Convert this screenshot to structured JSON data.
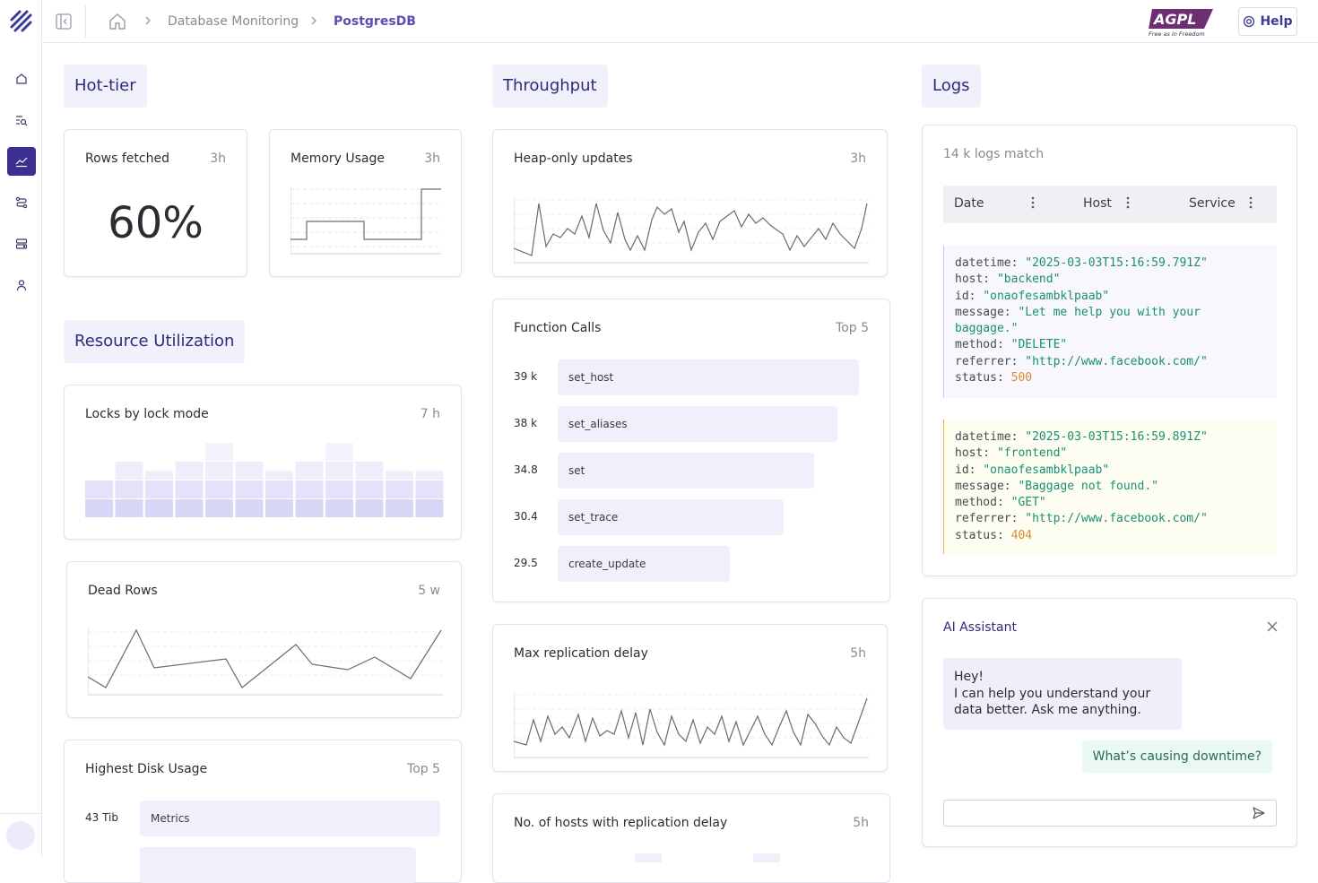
{
  "breadcrumb": {
    "items": [
      "Database Monitoring",
      "PostgresDB"
    ]
  },
  "header": {
    "help_label": "Help",
    "badge_text": "AGPL",
    "badge_tagline": "Free as in Freedom"
  },
  "sidebar": {
    "icons": [
      "home-icon",
      "search-list-icon",
      "chart-icon",
      "flow-icon",
      "database-icon",
      "user-icon"
    ],
    "active": "chart-icon"
  },
  "sections": {
    "hot_tier": "Hot-tier",
    "resource": "Resource Utilization",
    "throughput": "Throughput",
    "logs": "Logs"
  },
  "rows_fetched": {
    "title": "Rows fetched",
    "meta": "3h",
    "value": "60%"
  },
  "memory_usage": {
    "title": "Memory Usage",
    "meta": "3h"
  },
  "locks": {
    "title": "Locks by lock mode",
    "meta": "7 h",
    "bar_levels": [
      2,
      3,
      2.5,
      3,
      4,
      3,
      2.5,
      3,
      4,
      3,
      2.5,
      2.5
    ]
  },
  "dead_rows": {
    "title": "Dead Rows",
    "meta": "5 w"
  },
  "disk_usage": {
    "title": "Highest Disk Usage",
    "meta": "Top 5",
    "rows": [
      {
        "value": "43 Tib",
        "label": "Metrics",
        "fraction": 1.0
      },
      {
        "value": "",
        "label": "",
        "fraction": 0.92
      }
    ]
  },
  "heap_updates": {
    "title": "Heap-only updates",
    "meta": "3h"
  },
  "function_calls": {
    "title": "Function Calls",
    "meta": "Top 5",
    "rows": [
      {
        "value": "39 k",
        "label": "set_host",
        "fraction": 1.0
      },
      {
        "value": "38 k",
        "label": "set_aliases",
        "fraction": 0.93
      },
      {
        "value": "34.8",
        "label": "set",
        "fraction": 0.85
      },
      {
        "value": "30.4",
        "label": "set_trace",
        "fraction": 0.75
      },
      {
        "value": "29.5",
        "label": "create_update",
        "fraction": 0.57
      }
    ]
  },
  "replication_delay": {
    "title": "Max replication delay",
    "meta": "5h"
  },
  "hosts_delay": {
    "title": "No. of hosts with replication delay",
    "meta": "5h"
  },
  "logs": {
    "count": "14 k logs match",
    "columns": [
      "Date",
      "Host",
      "Service"
    ],
    "entries": [
      {
        "datetime": "\"2025-03-03T15:16:59.791Z\"",
        "host": "\"backend\"",
        "id": "\"onaofesambklpaab\"",
        "message": "\"Let me help you with your",
        "message2": "baggage.\"",
        "method": "\"DELETE\"",
        "referrer": "\"http://www.facebook.com/\"",
        "status": "500"
      },
      {
        "datetime": "\"2025-03-03T15:16:59.891Z\"",
        "host": "\"frontend\"",
        "id": "\"onaofesambklpaab\"",
        "message": "\"Baggage not found.\"",
        "method": "\"GET\"",
        "referrer": "\"http://www.facebook.com/\"",
        "status": "404"
      }
    ]
  },
  "assistant": {
    "title": "AI Assistant",
    "bot_line1": "Hey!",
    "bot_line2": "I can help you understand your data better. Ask me anything.",
    "user_message": "What’s causing downtime?",
    "input_value": ""
  },
  "colors": {
    "accent": "#3b2f8f",
    "section_bg": "#f1f1fb",
    "bar_bg": "#f0f0fc",
    "string": "#1a8f74",
    "number": "#e08a2a"
  }
}
